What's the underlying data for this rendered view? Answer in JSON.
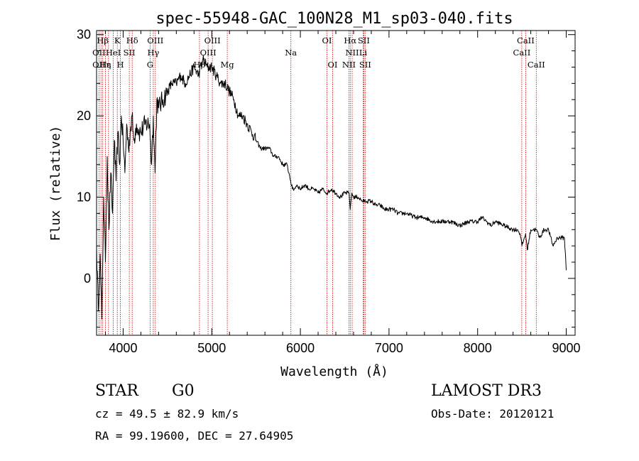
{
  "chart_data": {
    "type": "line",
    "title": "spec-55948-GAC_100N28_M1_sp03-040.fits",
    "xlabel": "Wavelength (Å)",
    "ylabel": "Flux (relative)",
    "xlim": [
      3700,
      9100
    ],
    "ylim": [
      -7,
      30.5
    ],
    "xticks": [
      4000,
      5000,
      6000,
      7000,
      8000,
      9000
    ],
    "yticks": [
      0,
      10,
      20,
      30
    ],
    "series": [
      {
        "name": "flux",
        "x": [
          3700,
          3720,
          3740,
          3760,
          3780,
          3800,
          3820,
          3840,
          3860,
          3880,
          3900,
          3920,
          3940,
          3960,
          3980,
          4000,
          4020,
          4040,
          4060,
          4080,
          4100,
          4120,
          4150,
          4180,
          4200,
          4250,
          4300,
          4320,
          4340,
          4360,
          4380,
          4400,
          4450,
          4500,
          4550,
          4600,
          4650,
          4700,
          4750,
          4800,
          4850,
          4900,
          4950,
          5000,
          5050,
          5100,
          5150,
          5200,
          5250,
          5300,
          5350,
          5400,
          5450,
          5500,
          5550,
          5600,
          5650,
          5700,
          5750,
          5800,
          5850,
          5870,
          5890,
          5910,
          5930,
          5960,
          6000,
          6050,
          6100,
          6150,
          6200,
          6250,
          6300,
          6350,
          6400,
          6450,
          6500,
          6550,
          6563,
          6580,
          6600,
          6650,
          6700,
          6750,
          6800,
          6850,
          6900,
          6950,
          7000,
          7050,
          7100,
          7200,
          7300,
          7400,
          7500,
          7600,
          7700,
          7800,
          7900,
          8000,
          8050,
          8100,
          8150,
          8200,
          8300,
          8400,
          8450,
          8480,
          8500,
          8542,
          8560,
          8600,
          8662,
          8700,
          8750,
          8800,
          8850,
          8900,
          8950,
          8980,
          9000
        ],
        "values": [
          4,
          -4,
          3,
          -5,
          10,
          2,
          15,
          6,
          13,
          8,
          17,
          12,
          18,
          14,
          20,
          17,
          13,
          19,
          16,
          18,
          20,
          17,
          19,
          18,
          18,
          19,
          19,
          14,
          20,
          13,
          22,
          21,
          22,
          23,
          24,
          24,
          25,
          24,
          25,
          26,
          25,
          27,
          26,
          26,
          25,
          24,
          24,
          23,
          22,
          20,
          20,
          19,
          18,
          17,
          16,
          16,
          16,
          15,
          15,
          14,
          14,
          13,
          12,
          11,
          11,
          11.5,
          11,
          11.5,
          11,
          11,
          10.5,
          11,
          10.5,
          11,
          10.5,
          10,
          10.5,
          10.5,
          8.5,
          10.5,
          10,
          10,
          9.5,
          9.5,
          9.5,
          9,
          9,
          8.5,
          8.5,
          8.5,
          8,
          8,
          7.5,
          7.5,
          7,
          7,
          7,
          6.5,
          7,
          7,
          7.5,
          7,
          6.5,
          7,
          6.5,
          6,
          6,
          5.5,
          4,
          5.5,
          3.5,
          6,
          6,
          5,
          6,
          6,
          4,
          5,
          5,
          5,
          1
        ]
      }
    ],
    "line_labels": [
      {
        "label": "Hβ",
        "wave": 3770,
        "row": 1
      },
      {
        "label": "OII",
        "wave": 3727,
        "row": 2
      },
      {
        "label": "OII",
        "wave": 3727,
        "row": 3
      },
      {
        "label": "K",
        "wave": 3934,
        "row": 1
      },
      {
        "label": "Hδ",
        "wave": 4102,
        "row": 1
      },
      {
        "label": "HeI",
        "wave": 3889,
        "row": 2
      },
      {
        "label": "SII",
        "wave": 4069,
        "row": 2
      },
      {
        "label": "Hε",
        "wave": 3800,
        "row": 3
      },
      {
        "label": "η",
        "wave": 3835,
        "row": 3
      },
      {
        "label": "H",
        "wave": 3968,
        "row": 3
      },
      {
        "label": "OIII",
        "wave": 4363,
        "row": 1
      },
      {
        "label": "Hγ",
        "wave": 4340,
        "row": 2
      },
      {
        "label": "G",
        "wave": 4304,
        "row": 3
      },
      {
        "label": "OIII",
        "wave": 5007,
        "row": 1
      },
      {
        "label": "OIII",
        "wave": 4959,
        "row": 2
      },
      {
        "label": "Hβ",
        "wave": 4861,
        "row": 3
      },
      {
        "label": "Mg",
        "wave": 5175,
        "row": 3
      },
      {
        "label": "Na",
        "wave": 5893,
        "row": 2
      },
      {
        "label": "OI",
        "wave": 6300,
        "row": 1
      },
      {
        "label": "OI",
        "wave": 6364,
        "row": 3
      },
      {
        "label": "Hα",
        "wave": 6563,
        "row": 1
      },
      {
        "label": "SII",
        "wave": 6716,
        "row": 1
      },
      {
        "label": "NII",
        "wave": 6584,
        "row": 2
      },
      {
        "label": "Li",
        "wave": 6708,
        "row": 2
      },
      {
        "label": "NII",
        "wave": 6548,
        "row": 3
      },
      {
        "label": "SII",
        "wave": 6731,
        "row": 3
      },
      {
        "label": "CaII",
        "wave": 8542,
        "row": 1
      },
      {
        "label": "CaII",
        "wave": 8498,
        "row": 2
      },
      {
        "label": "CaII",
        "wave": 8662,
        "row": 3
      }
    ],
    "line_marks": [
      3727,
      3750,
      3770,
      3800,
      3835,
      3889,
      3934,
      3968,
      4069,
      4102,
      4304,
      4340,
      4363,
      4861,
      4959,
      5007,
      5175,
      5893,
      6300,
      6364,
      6548,
      6563,
      6584,
      6708,
      6716,
      6731,
      8498,
      8542,
      8662
    ]
  },
  "info": {
    "object_class": "STAR",
    "subclass": "G0",
    "survey": "LAMOST DR3",
    "cz": "cz = 49.5 ± 82.9 km/s",
    "obs_date": "Obs-Date: 20120121",
    "coords": "RA =  99.19600, DEC =  27.64905"
  },
  "colors": {
    "spectrum": "#000000",
    "line_marker": "#cc0000",
    "axis": "#000000"
  }
}
